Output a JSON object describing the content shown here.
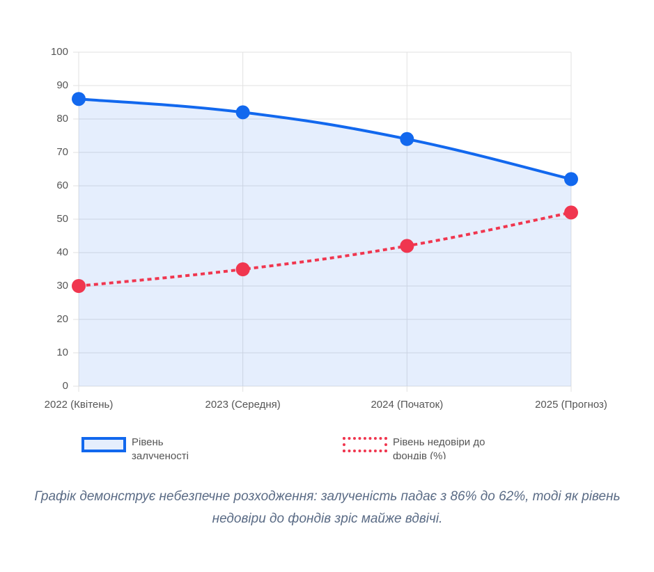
{
  "chart_data": {
    "type": "line",
    "categories": [
      "2022 (Квітень)",
      "2023 (Середня)",
      "2024 (Початок)",
      "2025 (Прогноз)"
    ],
    "series": [
      {
        "name": "Рівень залученості",
        "color": "#1268ee",
        "values": [
          86,
          82,
          74,
          62
        ],
        "fill": true,
        "line_style": "solid"
      },
      {
        "name": "Рівень недовіри до фондів (%)",
        "color": "#f0364f",
        "values": [
          30,
          35,
          42,
          52
        ],
        "fill": false,
        "line_style": "dashed"
      }
    ],
    "ylim": [
      0,
      100
    ],
    "yticks": [
      0,
      10,
      20,
      30,
      40,
      50,
      60,
      70,
      80,
      90,
      100
    ],
    "grid": true,
    "legend": "bottom"
  },
  "caption": "Графік демонструє небезпечне розходження: залученість падає з 86% до 62%, тоді як рівень недовіри до фондів зріс майже вдвічі."
}
